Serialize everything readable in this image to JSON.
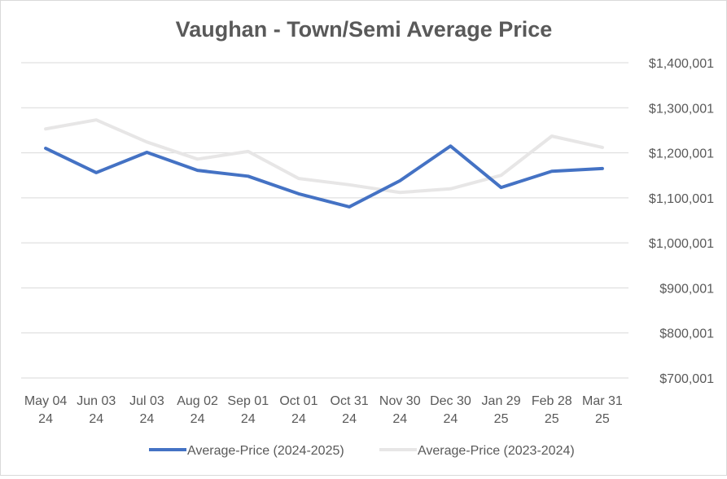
{
  "chart_data": {
    "type": "line",
    "title": "Vaughan - Town/Semi Average Price",
    "xlabel": "",
    "ylabel": "",
    "categories": [
      [
        "May 04",
        "24"
      ],
      [
        "Jun 03",
        "24"
      ],
      [
        "Jul 03",
        "24"
      ],
      [
        "Aug 02",
        "24"
      ],
      [
        "Sep 01",
        "24"
      ],
      [
        "Oct 01",
        "24"
      ],
      [
        "Oct 31",
        "24"
      ],
      [
        "Nov 30",
        "24"
      ],
      [
        "Dec 30",
        "24"
      ],
      [
        "Jan 29",
        "25"
      ],
      [
        "Feb 28",
        "25"
      ],
      [
        "Mar 31",
        "25"
      ]
    ],
    "ylim": [
      700001,
      1400001
    ],
    "yticks": [
      700001,
      800001,
      900001,
      1000001,
      1100001,
      1200001,
      1300001,
      1400001
    ],
    "ytick_labels": [
      "$700,001",
      "$800,001",
      "$900,001",
      "$1,000,001",
      "$1,100,001",
      "$1,200,001",
      "$1,300,001",
      "$1,400,001"
    ],
    "grid": true,
    "legend_position": "bottom",
    "series": [
      {
        "name": "Average-Price (2024-2025)",
        "color": "#4472C4",
        "values": [
          1210000,
          1156000,
          1201000,
          1161000,
          1148000,
          1109000,
          1080000,
          1138000,
          1215000,
          1123000,
          1159000,
          1165000
        ]
      },
      {
        "name": "Average-Price (2023-2024)",
        "color": "#E7E6E6",
        "values": [
          1253000,
          1273000,
          1224000,
          1186000,
          1203000,
          1143000,
          1129000,
          1112000,
          1120000,
          1150000,
          1237000,
          1212000
        ]
      }
    ]
  }
}
